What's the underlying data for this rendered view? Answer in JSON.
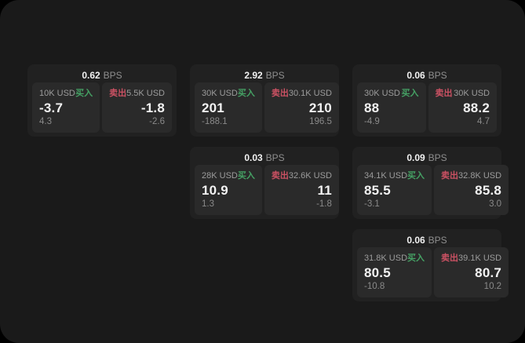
{
  "labels": {
    "buy": "买入",
    "sell": "卖出",
    "bps": "BPS"
  },
  "colors": {
    "buy": "#45a164",
    "sell": "#cb5163",
    "card": "#212121",
    "panel": "#2a2a2a",
    "surface": "#1a1a1a",
    "bg": "#000000",
    "text_primary": "#f2f2f2",
    "text_secondary": "#9c9c9c",
    "text_muted": "#8a8a8a"
  },
  "cards": [
    {
      "row": 1,
      "col": 1,
      "bps": "0.62",
      "buy": {
        "size": "10K USD",
        "price": "-3.7",
        "delta": "4.3"
      },
      "sell": {
        "size": "5.5K USD",
        "price": "-1.8",
        "delta": "-2.6"
      }
    },
    {
      "row": 1,
      "col": 2,
      "bps": "2.92",
      "buy": {
        "size": "30K USD",
        "price": "201",
        "delta": "-188.1"
      },
      "sell": {
        "size": "30.1K USD",
        "price": "210",
        "delta": "196.5"
      }
    },
    {
      "row": 1,
      "col": 3,
      "bps": "0.06",
      "buy": {
        "size": "30K USD",
        "price": "88",
        "delta": "-4.9"
      },
      "sell": {
        "size": "30K USD",
        "price": "88.2",
        "delta": "4.7"
      }
    },
    {
      "row": 2,
      "col": 2,
      "bps": "0.03",
      "buy": {
        "size": "28K USD",
        "price": "10.9",
        "delta": "1.3"
      },
      "sell": {
        "size": "32.6K USD",
        "price": "11",
        "delta": "-1.8"
      }
    },
    {
      "row": 2,
      "col": 3,
      "bps": "0.09",
      "buy": {
        "size": "34.1K USD",
        "price": "85.5",
        "delta": "-3.1"
      },
      "sell": {
        "size": "32.8K USD",
        "price": "85.8",
        "delta": "3.0"
      }
    },
    {
      "row": 3,
      "col": 3,
      "bps": "0.06",
      "buy": {
        "size": "31.8K USD",
        "price": "80.5",
        "delta": "-10.8"
      },
      "sell": {
        "size": "39.1K USD",
        "price": "80.7",
        "delta": "10.2"
      }
    }
  ]
}
